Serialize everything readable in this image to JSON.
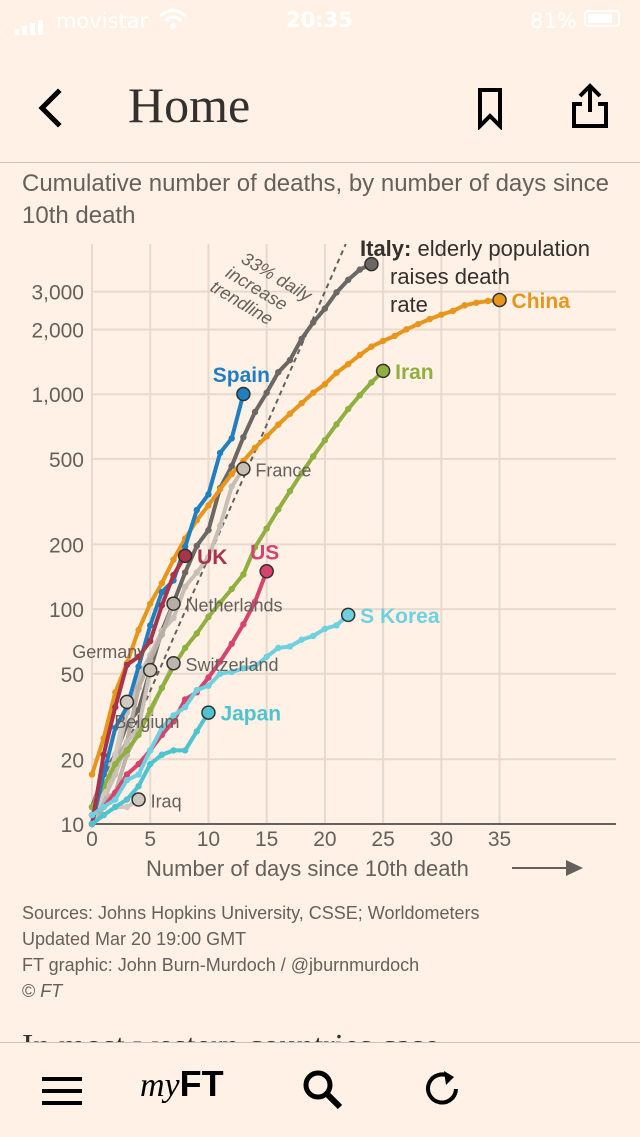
{
  "status_bar": {
    "carrier": "movistar",
    "time": "20:35",
    "battery": "81%",
    "icons": [
      "signal-icon",
      "wifi-icon",
      "battery-icon"
    ]
  },
  "nav": {
    "title": "Home",
    "icons": [
      "back-chevron-icon",
      "bookmark-icon",
      "share-icon"
    ]
  },
  "chart_data": {
    "type": "line",
    "title": "Cumulative number of deaths, by number of days since 10th death",
    "xlabel": "Number of days since 10th death",
    "ylabel": "",
    "xlim": [
      0,
      45
    ],
    "ylim": [
      10,
      5000
    ],
    "yscale": "log",
    "x_ticks": [
      0,
      5,
      10,
      15,
      20,
      25,
      30,
      35
    ],
    "y_ticks": [
      {
        "value": 10,
        "label": "10"
      },
      {
        "value": 20,
        "label": "20"
      },
      {
        "value": 50,
        "label": "50"
      },
      {
        "value": 100,
        "label": "100"
      },
      {
        "value": 200,
        "label": "200"
      },
      {
        "value": 500,
        "label": "500"
      },
      {
        "value": 1000,
        "label": "1,000"
      },
      {
        "value": 2000,
        "label": "2,000"
      },
      {
        "value": 3000,
        "label": "3,000"
      }
    ],
    "grid": true,
    "trendline": {
      "label": "33% daily increase trendline",
      "rate": 0.33
    },
    "annotations": [
      {
        "bold": "Italy:",
        "text": [
          "elderly population",
          "raises death",
          "rate"
        ]
      }
    ],
    "series": [
      {
        "name": "China",
        "color": "#e8961b",
        "highlight": true,
        "label_pos": "right",
        "x": [
          0,
          1,
          2,
          3,
          4,
          5,
          6,
          7,
          8,
          9,
          10,
          11,
          12,
          13,
          14,
          15,
          16,
          17,
          18,
          19,
          20,
          21,
          22,
          23,
          24,
          25,
          26,
          27,
          28,
          29,
          30,
          31,
          32,
          33,
          34,
          35
        ],
        "y": [
          17,
          25,
          41,
          56,
          80,
          106,
          132,
          170,
          213,
          259,
          304,
          361,
          425,
          490,
          563,
          636,
          722,
          811,
          908,
          1016,
          1113,
          1259,
          1380,
          1523,
          1665,
          1770,
          1868,
          2004,
          2118,
          2236,
          2345,
          2442,
          2592,
          2663,
          2715,
          2744
        ]
      },
      {
        "name": "Italy",
        "color": "#6b6764",
        "highlight": false,
        "label_pos": "none",
        "x": [
          0,
          1,
          2,
          3,
          4,
          5,
          6,
          7,
          8,
          9,
          10,
          11,
          12,
          13,
          14,
          15,
          16,
          17,
          18,
          19,
          20,
          21,
          22,
          23,
          24
        ],
        "y": [
          12,
          17,
          21,
          29,
          34,
          52,
          79,
          107,
          148,
          197,
          233,
          366,
          463,
          631,
          827,
          1016,
          1266,
          1441,
          1809,
          2158,
          2503,
          2978,
          3405,
          3800,
          4032
        ]
      },
      {
        "name": "Iran",
        "color": "#8fb03f",
        "highlight": true,
        "label_pos": "right",
        "x": [
          0,
          1,
          2,
          3,
          4,
          5,
          6,
          7,
          8,
          9,
          10,
          11,
          12,
          13,
          14,
          15,
          16,
          17,
          18,
          19,
          20,
          21,
          22,
          23,
          24,
          25
        ],
        "y": [
          12,
          15,
          19,
          22,
          26,
          34,
          43,
          54,
          66,
          77,
          92,
          107,
          124,
          145,
          194,
          237,
          291,
          354,
          429,
          514,
          611,
          724,
          853,
          988,
          1135,
          1284
        ]
      },
      {
        "name": "Spain",
        "color": "#1f7fc1",
        "highlight": true,
        "label_pos": "top",
        "x": [
          0,
          1,
          2,
          3,
          4,
          5,
          6,
          7,
          8,
          9,
          10,
          11,
          12,
          13
        ],
        "y": [
          10,
          17,
          28,
          35,
          54,
          84,
          120,
          136,
          195,
          289,
          342,
          533,
          623,
          1002
        ]
      },
      {
        "name": "US",
        "color": "#d6446e",
        "highlight": true,
        "label_pos": "top",
        "x": [
          0,
          1,
          2,
          3,
          4,
          5,
          6,
          7,
          8,
          9,
          10,
          11,
          12,
          13,
          14,
          15
        ],
        "y": [
          11,
          12,
          14,
          17,
          19,
          22,
          26,
          30,
          38,
          41,
          48,
          57,
          69,
          85,
          108,
          150
        ]
      },
      {
        "name": "UK",
        "color": "#a8334a",
        "highlight": true,
        "label_pos": "right",
        "x": [
          0,
          1,
          2,
          3,
          4,
          5,
          6,
          7,
          8
        ],
        "y": [
          10,
          21,
          35,
          55,
          60,
          71,
          104,
          144,
          177
        ]
      },
      {
        "name": "S Korea",
        "color": "#6fd1e0",
        "highlight": true,
        "label_pos": "right",
        "x": [
          0,
          1,
          2,
          3,
          4,
          5,
          6,
          7,
          8,
          9,
          10,
          11,
          12,
          13,
          14,
          15,
          16,
          17,
          18,
          19,
          20,
          21,
          22
        ],
        "y": [
          11,
          12,
          13,
          16,
          17,
          22,
          28,
          32,
          35,
          42,
          44,
          50,
          51,
          53,
          54,
          60,
          66,
          67,
          72,
          75,
          81,
          84,
          94
        ]
      },
      {
        "name": "Japan",
        "color": "#4ec4cf",
        "highlight": true,
        "label_pos": "right",
        "x": [
          0,
          1,
          2,
          3,
          4,
          5,
          6,
          7,
          8,
          9,
          10
        ],
        "y": [
          10,
          11,
          12,
          13,
          15,
          19,
          21,
          22,
          22,
          27,
          33
        ]
      },
      {
        "name": "France",
        "color": "#c7beb6",
        "highlight": false,
        "label_pos": "right",
        "x": [
          0,
          1,
          2,
          3,
          4,
          5,
          6,
          7,
          8,
          9,
          10,
          11,
          12,
          13
        ],
        "y": [
          11,
          19,
          19,
          33,
          48,
          61,
          79,
          91,
          127,
          148,
          175,
          244,
          372,
          450
        ]
      },
      {
        "name": "Netherlands",
        "color": "#b7aea6",
        "highlight": false,
        "label_pos": "right",
        "x": [
          0,
          1,
          2,
          3,
          4,
          5,
          6,
          7
        ],
        "y": [
          10,
          12,
          20,
          24,
          43,
          58,
          76,
          106
        ]
      },
      {
        "name": "Germany",
        "color": "#c9c0b8",
        "highlight": false,
        "label_pos": "left",
        "x": [
          0,
          1,
          2,
          3,
          4,
          5
        ],
        "y": [
          12,
          13,
          17,
          24,
          28,
          52
        ]
      },
      {
        "name": "Switzerland",
        "color": "#bdb4ac",
        "highlight": false,
        "label_pos": "right",
        "x": [
          0,
          1,
          2,
          3,
          4,
          5,
          6,
          7
        ],
        "y": [
          11,
          13,
          14,
          21,
          27,
          33,
          43,
          56
        ]
      },
      {
        "name": "Belgium",
        "color": "#d2c9c1",
        "highlight": false,
        "label_pos": "bottom",
        "x": [
          0,
          1,
          2,
          3
        ],
        "y": [
          10,
          14,
          21,
          37
        ]
      },
      {
        "name": "Iraq",
        "color": "#cfc6be",
        "highlight": false,
        "label_pos": "right",
        "x": [
          0,
          1,
          2,
          3,
          4
        ],
        "y": [
          10,
          11,
          12,
          12,
          13
        ]
      }
    ]
  },
  "source": {
    "sources": "Sources: Johns Hopkins University, CSSE; Worldometers",
    "updated": "Updated Mar 20 19:00 GMT",
    "graphic": "FT graphic: John Burn-Murdoch / @jburnmurdoch",
    "copyright_symbol": "©",
    "copyright_owner": "FT"
  },
  "next_heading": "In most western countries case",
  "tab_bar": {
    "my": "my",
    "ft": "FT",
    "icons": [
      "menu-icon",
      "search-icon",
      "refresh-icon"
    ]
  },
  "colors": {
    "background": "#fff1e5",
    "text": "#33302e",
    "muted_text": "#66605c",
    "grid": "#e6d9ce"
  }
}
